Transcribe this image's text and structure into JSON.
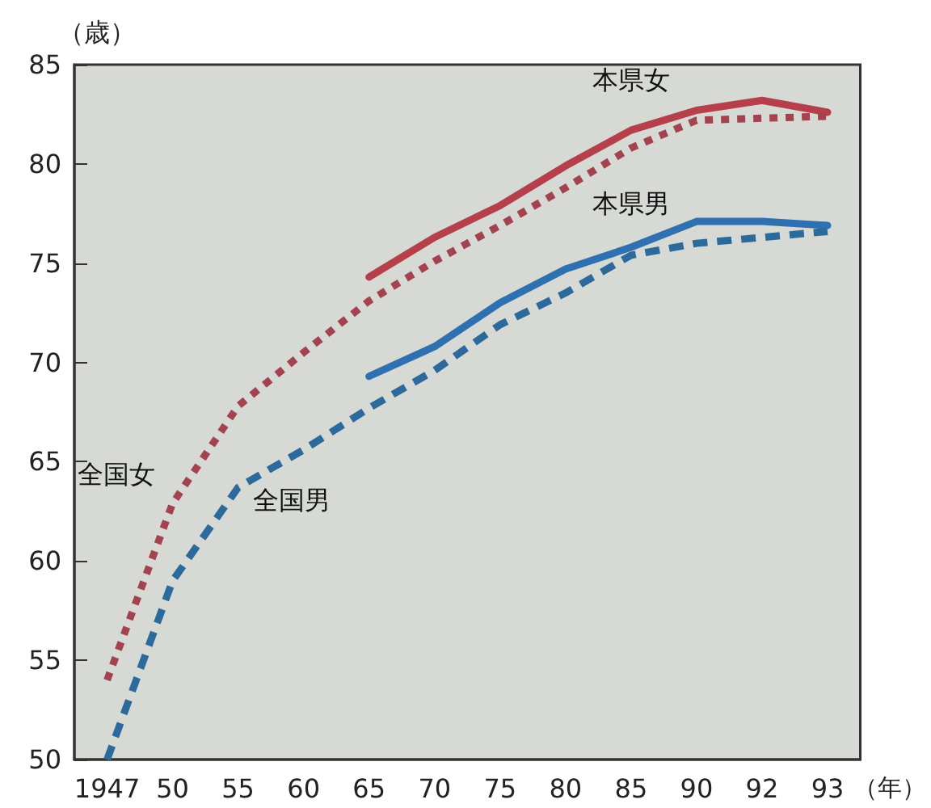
{
  "chart_data": {
    "type": "line",
    "ylabel": "（歳）",
    "xlabel": "（年）",
    "categories": [
      "1947",
      "50",
      "55",
      "60",
      "65",
      "70",
      "75",
      "80",
      "85",
      "90",
      "92",
      "93"
    ],
    "ylim": [
      50,
      85
    ],
    "yticks": [
      50,
      55,
      60,
      65,
      70,
      75,
      80,
      85
    ],
    "grid": false,
    "legend": false,
    "marker": "none",
    "series": [
      {
        "name": "本県女",
        "color": "#b5404c",
        "line_style": "solid",
        "values": [
          null,
          null,
          null,
          null,
          74.3,
          76.3,
          77.9,
          79.9,
          81.7,
          82.7,
          83.2,
          82.6
        ]
      },
      {
        "name": "全国女",
        "color": "#a3434f",
        "line_style": "dotted",
        "values": [
          54.0,
          62.9,
          67.8,
          70.5,
          73.1,
          75.1,
          76.9,
          78.8,
          80.8,
          82.2,
          82.3,
          82.4
        ]
      },
      {
        "name": "本県男",
        "color": "#2f70b0",
        "line_style": "solid",
        "values": [
          null,
          null,
          null,
          null,
          69.3,
          70.8,
          73.0,
          74.7,
          75.8,
          77.1,
          77.1,
          76.9
        ]
      },
      {
        "name": "全国男",
        "color": "#2d6a9c",
        "line_style": "dashed",
        "values": [
          50.0,
          59.0,
          63.7,
          65.6,
          67.7,
          69.6,
          71.9,
          73.5,
          75.4,
          76.0,
          76.3,
          76.6
        ]
      }
    ]
  }
}
